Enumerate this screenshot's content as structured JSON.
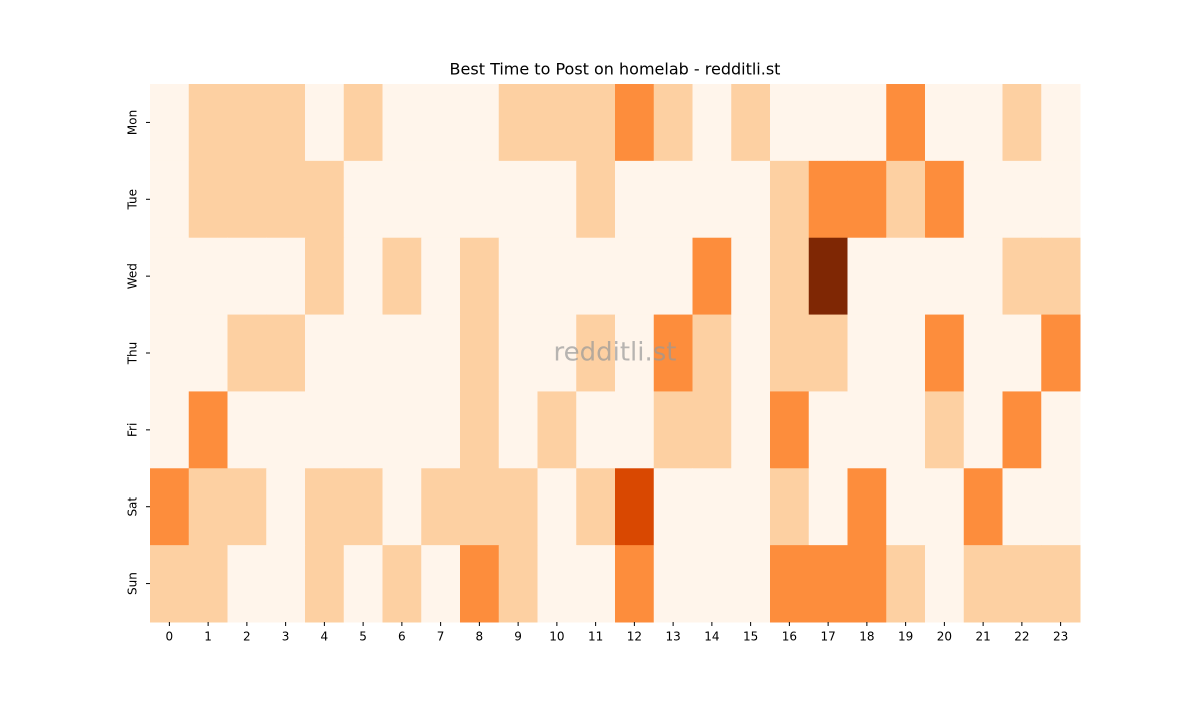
{
  "chart_data": {
    "type": "heatmap",
    "title": "Best Time to Post on homelab - redditli.st",
    "watermark": "redditli.st",
    "x": [
      "0",
      "1",
      "2",
      "3",
      "4",
      "5",
      "6",
      "7",
      "8",
      "9",
      "10",
      "11",
      "12",
      "13",
      "14",
      "15",
      "16",
      "17",
      "18",
      "19",
      "20",
      "21",
      "22",
      "23"
    ],
    "categories": [
      "Mon",
      "Tue",
      "Wed",
      "Thu",
      "Fri",
      "Sat",
      "Sun"
    ],
    "values": [
      [
        0,
        1,
        1,
        1,
        0,
        1,
        0,
        0,
        0,
        1,
        1,
        1,
        2,
        1,
        0,
        1,
        0,
        0,
        0,
        2,
        0,
        0,
        1,
        0
      ],
      [
        0,
        1,
        1,
        1,
        1,
        0,
        0,
        0,
        0,
        0,
        0,
        1,
        0,
        0,
        0,
        0,
        1,
        2,
        2,
        1,
        2,
        0,
        0,
        0
      ],
      [
        0,
        0,
        0,
        0,
        1,
        0,
        1,
        0,
        1,
        0,
        0,
        0,
        0,
        0,
        2,
        0,
        1,
        4,
        0,
        0,
        0,
        0,
        1,
        1
      ],
      [
        0,
        0,
        1,
        1,
        0,
        0,
        0,
        0,
        1,
        0,
        0,
        1,
        0,
        2,
        1,
        0,
        1,
        1,
        0,
        0,
        2,
        0,
        0,
        2
      ],
      [
        0,
        2,
        0,
        0,
        0,
        0,
        0,
        0,
        1,
        0,
        1,
        0,
        0,
        1,
        1,
        0,
        2,
        0,
        0,
        0,
        1,
        0,
        2,
        0
      ],
      [
        2,
        1,
        1,
        0,
        1,
        1,
        0,
        1,
        1,
        1,
        0,
        1,
        3,
        0,
        0,
        0,
        1,
        0,
        2,
        0,
        0,
        2,
        0,
        0
      ],
      [
        1,
        1,
        0,
        0,
        1,
        0,
        1,
        0,
        2,
        1,
        0,
        0,
        2,
        0,
        0,
        0,
        2,
        2,
        2,
        1,
        0,
        1,
        1,
        1
      ]
    ],
    "colormap": [
      "#fff5eb",
      "#fdd0a2",
      "#fd8d3c",
      "#d94801",
      "#7f2704"
    ]
  }
}
